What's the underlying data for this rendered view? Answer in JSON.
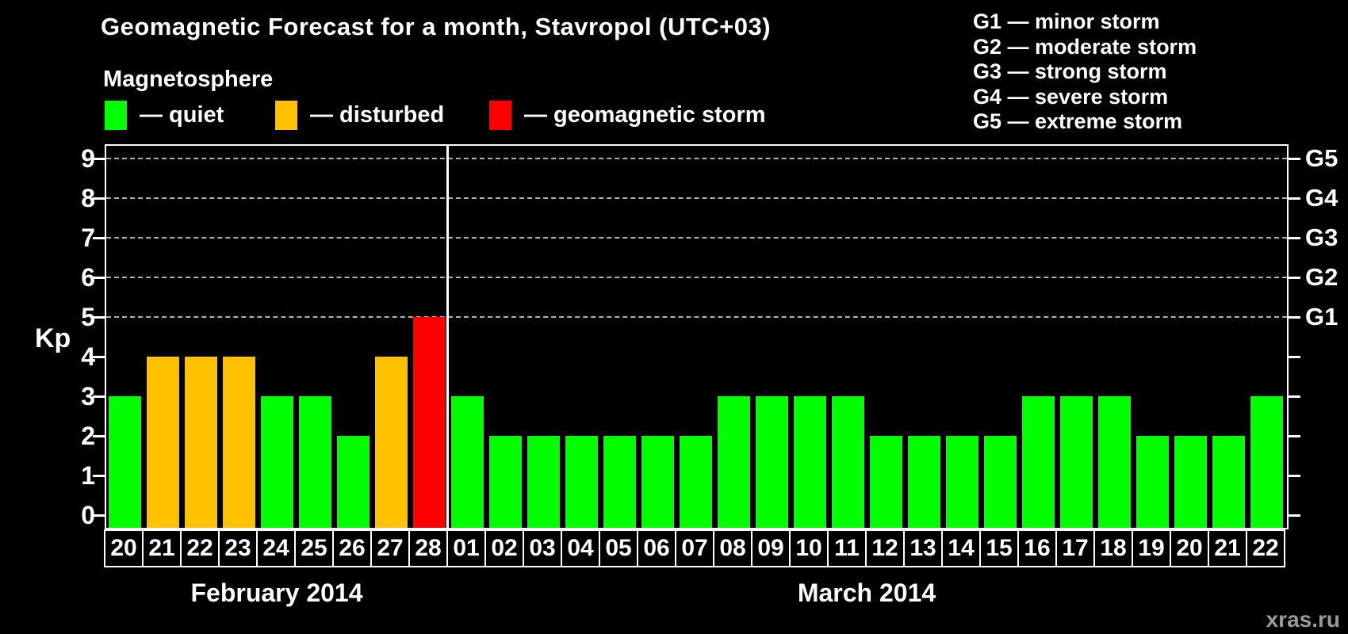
{
  "header": {
    "title": "Geomagnetic Forecast for a month, Stavropol (UTC+03)"
  },
  "legend": {
    "title": "Magnetosphere",
    "items": [
      {
        "key": "quiet",
        "label": "— quiet",
        "color": "#00ff00"
      },
      {
        "key": "disturbed",
        "label": "— disturbed",
        "color": "#ffc000"
      },
      {
        "key": "storm",
        "label": "— geomagnetic storm",
        "color": "#ff0000"
      }
    ]
  },
  "g_legend": {
    "items": [
      "G1 — minor storm",
      "G2 — moderate storm",
      "G3 — strong storm",
      "G4 — severe storm",
      "G5 — extreme storm"
    ]
  },
  "axes": {
    "y_left_label": "Kp",
    "y_left_ticks": [
      "0",
      "1",
      "2",
      "3",
      "4",
      "5",
      "6",
      "7",
      "8",
      "9"
    ],
    "y_right_labels": [
      {
        "kp": 5,
        "label": "G1"
      },
      {
        "kp": 6,
        "label": "G2"
      },
      {
        "kp": 7,
        "label": "G3"
      },
      {
        "kp": 8,
        "label": "G4"
      },
      {
        "kp": 9,
        "label": "G5"
      }
    ]
  },
  "watermark": "xras.ru",
  "chart_data": {
    "type": "bar",
    "title": "Geomagnetic Forecast for a month, Stavropol (UTC+03)",
    "xlabel": "",
    "ylabel": "Kp",
    "ylim": [
      0,
      9
    ],
    "grid": {
      "horizontal_dashed_at": [
        5,
        6,
        7,
        8,
        9
      ],
      "vertical": false
    },
    "legend_position": "top-left",
    "status_colors": {
      "quiet": "#00ff00",
      "disturbed": "#ffc000",
      "storm": "#ff0000"
    },
    "month_groups": [
      {
        "label": "February 2014",
        "count": 9
      },
      {
        "label": "March 2014",
        "count": 22
      }
    ],
    "categories": [
      "20",
      "21",
      "22",
      "23",
      "24",
      "25",
      "26",
      "27",
      "28",
      "01",
      "02",
      "03",
      "04",
      "05",
      "06",
      "07",
      "08",
      "09",
      "10",
      "11",
      "12",
      "13",
      "14",
      "15",
      "16",
      "17",
      "18",
      "19",
      "20",
      "21",
      "22"
    ],
    "values": [
      3,
      4,
      4,
      4,
      3,
      3,
      2,
      4,
      5,
      3,
      2,
      2,
      2,
      2,
      2,
      2,
      3,
      3,
      3,
      3,
      2,
      2,
      2,
      2,
      3,
      3,
      3,
      2,
      2,
      2,
      3
    ],
    "statuses": [
      "quiet",
      "disturbed",
      "disturbed",
      "disturbed",
      "quiet",
      "quiet",
      "quiet",
      "disturbed",
      "storm",
      "quiet",
      "quiet",
      "quiet",
      "quiet",
      "quiet",
      "quiet",
      "quiet",
      "quiet",
      "quiet",
      "quiet",
      "quiet",
      "quiet",
      "quiet",
      "quiet",
      "quiet",
      "quiet",
      "quiet",
      "quiet",
      "quiet",
      "quiet",
      "quiet",
      "quiet"
    ]
  }
}
